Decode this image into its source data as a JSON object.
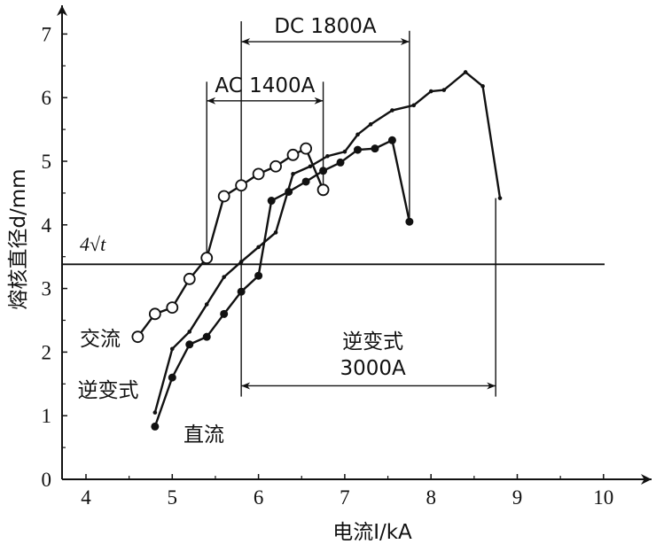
{
  "chart_data": {
    "type": "line",
    "xlabel": "电流I/kA",
    "ylabel": "熔核直径d/mm",
    "xlim": [
      3.75,
      10.5
    ],
    "ylim": [
      0,
      7.5
    ],
    "xticks": [
      "4",
      "5",
      "6",
      "7",
      "8",
      "9",
      "10"
    ],
    "yticks": [
      "0",
      "1",
      "2",
      "3",
      "4",
      "5",
      "6",
      "7"
    ],
    "grid": false,
    "series": [
      {
        "name": "交流",
        "marker": "open-circle",
        "x": [
          4.6,
          4.8,
          5.0,
          5.2,
          5.4,
          5.6,
          5.8,
          6.0,
          6.2,
          6.4,
          6.55,
          6.75
        ],
        "y": [
          2.24,
          2.6,
          2.7,
          3.15,
          3.48,
          4.45,
          4.62,
          4.8,
          4.92,
          5.1,
          5.2,
          4.55
        ]
      },
      {
        "name": "逆变式",
        "marker": "small-dot",
        "x": [
          4.8,
          5.0,
          5.2,
          5.4,
          5.6,
          5.8,
          6.0,
          6.2,
          6.4,
          6.6,
          6.8,
          7.0,
          7.15,
          7.3,
          7.55,
          7.8,
          8.0,
          8.15,
          8.4,
          8.6,
          8.8
        ],
        "y": [
          1.05,
          2.05,
          2.32,
          2.75,
          3.18,
          3.42,
          3.65,
          3.88,
          4.8,
          4.92,
          5.08,
          5.15,
          5.42,
          5.58,
          5.8,
          5.88,
          6.1,
          6.12,
          6.4,
          6.18,
          4.42
        ]
      },
      {
        "name": "直流",
        "marker": "filled-circle",
        "x": [
          4.8,
          5.0,
          5.2,
          5.4,
          5.6,
          5.8,
          6.0,
          6.15,
          6.35,
          6.55,
          6.75,
          6.95,
          7.15,
          7.35,
          7.55,
          7.75
        ],
        "y": [
          0.83,
          1.6,
          2.12,
          2.24,
          2.6,
          2.95,
          3.2,
          4.38,
          4.52,
          4.68,
          4.85,
          4.98,
          5.18,
          5.2,
          5.33,
          4.05
        ]
      }
    ],
    "reference_line": {
      "label": "4√t",
      "y": 3.38
    },
    "annotations": [
      {
        "label": "DC 1800A",
        "x_from": 5.8,
        "x_to": 7.75,
        "y": 6.88
      },
      {
        "label": "AC 1400A",
        "x_from": 5.4,
        "x_to": 6.75,
        "y": 5.95
      },
      {
        "label_line1": "逆变式",
        "label_line2": "3000A",
        "x_from": 5.8,
        "x_to": 8.75,
        "y": 1.47
      }
    ],
    "reference_verticals": [
      {
        "x": 5.4,
        "y_from": 3.48,
        "y_to": 6.25
      },
      {
        "x": 5.8,
        "y_from": 1.3,
        "y_to": 7.2
      },
      {
        "x": 6.75,
        "y_from": 4.55,
        "y_to": 6.25
      },
      {
        "x": 7.75,
        "y_from": 4.05,
        "y_to": 7.05
      },
      {
        "x": 8.75,
        "y_from": 1.3,
        "y_to": 4.42
      }
    ],
    "series_labels": [
      {
        "text": "交流",
        "series": "交流"
      },
      {
        "text": "逆变式",
        "series": "逆变式"
      },
      {
        "text": "直流",
        "series": "直流"
      }
    ]
  }
}
